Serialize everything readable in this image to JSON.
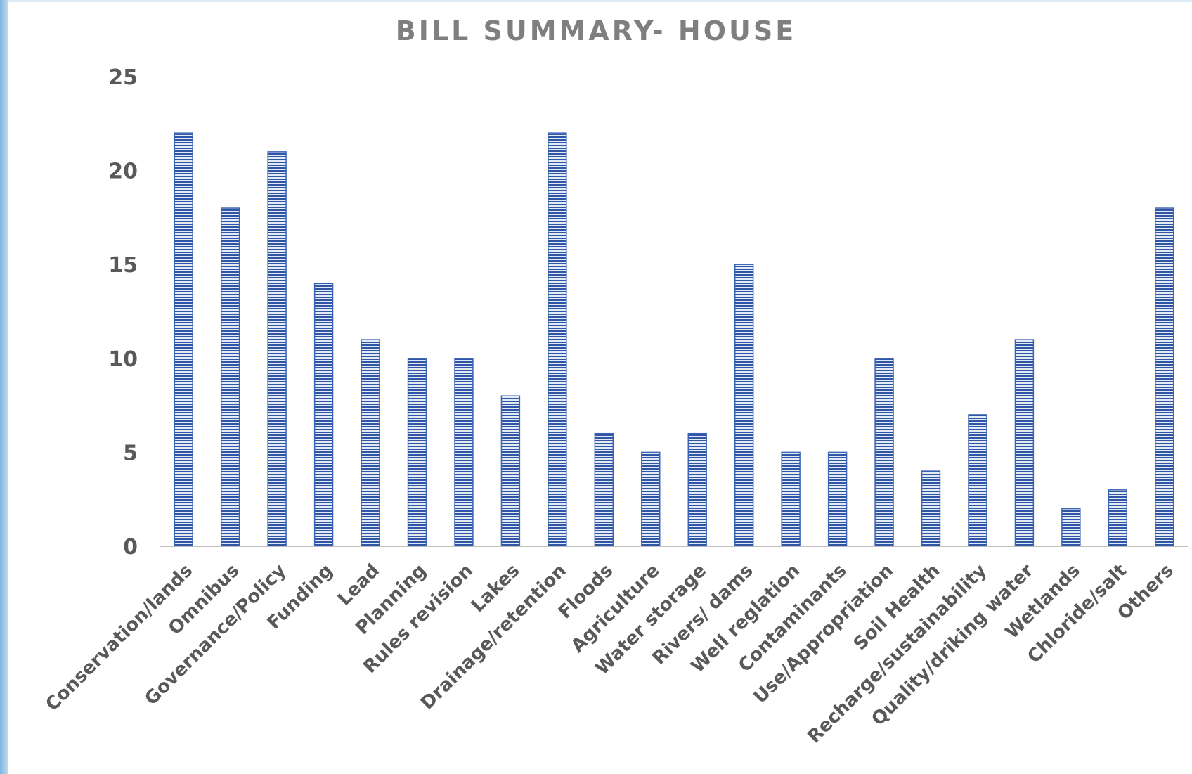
{
  "chart_data": {
    "type": "bar",
    "title": "BILL SUMMARY- HOUSE",
    "xlabel": "",
    "ylabel": "",
    "ylim": [
      0,
      25
    ],
    "yticks": [
      0,
      5,
      10,
      15,
      20,
      25
    ],
    "grid": false,
    "legend": "none",
    "bar_color": "#4472c4",
    "categories": [
      "Conservation/lands",
      "Omnibus",
      "Governance/Policy",
      "Funding",
      "Lead",
      "Planning",
      "Rules revision",
      "Lakes",
      "Drainage/retention",
      "Floods",
      "Agriculture",
      "Water storage",
      "Rivers/ dams",
      "Well reglation",
      "Contaminants",
      "Use/Appropriation",
      "Soil Health",
      "Recharge/sustainability",
      "Quality/driking water",
      "Wetlands",
      "Chloride/salt",
      "Others"
    ],
    "values": [
      22,
      18,
      21,
      14,
      11,
      10,
      10,
      8,
      22,
      6,
      5,
      6,
      15,
      5,
      5,
      10,
      4,
      7,
      11,
      2,
      3,
      18
    ]
  }
}
